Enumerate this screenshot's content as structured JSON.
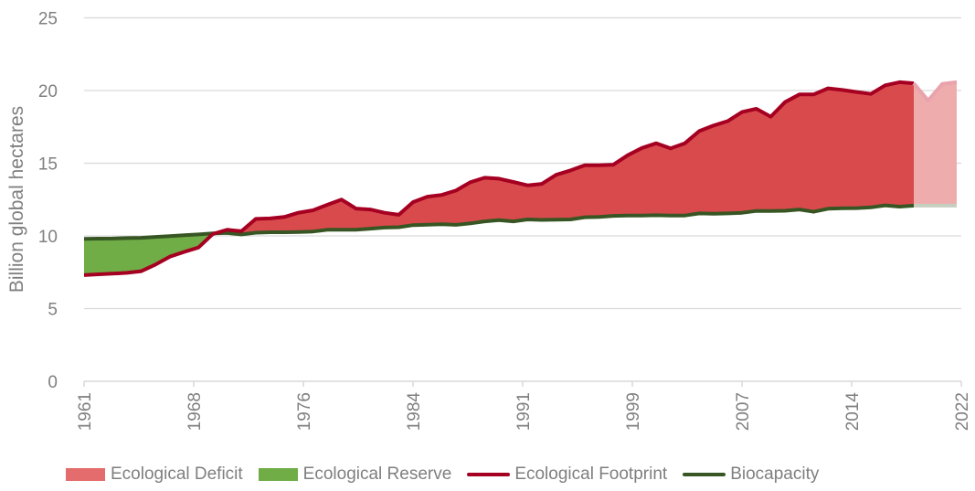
{
  "chart_data": {
    "type": "area",
    "title": "",
    "xlabel": "",
    "ylabel": "Billion global hectares",
    "ylim": [
      0,
      25
    ],
    "yticks": [
      0,
      5,
      10,
      15,
      20,
      25
    ],
    "xlim": [
      1961,
      2022
    ],
    "xtick_labels": [
      "1961",
      "1968",
      "1976",
      "1984",
      "1991",
      "1999",
      "2007",
      "2014",
      "2022"
    ],
    "grid": true,
    "legend_position": "bottom",
    "projection_start_year": 2019,
    "x": [
      1961,
      1962,
      1963,
      1964,
      1965,
      1966,
      1967,
      1968,
      1969,
      1970,
      1971,
      1972,
      1973,
      1974,
      1975,
      1976,
      1977,
      1978,
      1979,
      1980,
      1981,
      1982,
      1983,
      1984,
      1985,
      1986,
      1987,
      1988,
      1989,
      1990,
      1991,
      1992,
      1993,
      1994,
      1995,
      1996,
      1997,
      1998,
      1999,
      2000,
      2001,
      2002,
      2003,
      2004,
      2005,
      2006,
      2007,
      2008,
      2009,
      2010,
      2011,
      2012,
      2013,
      2014,
      2015,
      2016,
      2017,
      2018,
      2019,
      2020,
      2021,
      2022
    ],
    "series": [
      {
        "name": "Ecological Footprint",
        "kind": "line",
        "color": "#a50021",
        "values": [
          7.3,
          7.36,
          7.4,
          7.46,
          7.57,
          8.03,
          8.57,
          8.9,
          9.2,
          10.13,
          10.42,
          10.32,
          11.17,
          11.2,
          11.3,
          11.6,
          11.76,
          12.14,
          12.5,
          11.88,
          11.82,
          11.59,
          11.45,
          12.33,
          12.7,
          12.82,
          13.12,
          13.69,
          14.0,
          13.94,
          13.71,
          13.48,
          13.58,
          14.2,
          14.5,
          14.86,
          14.86,
          14.9,
          15.55,
          16.05,
          16.37,
          16.02,
          16.37,
          17.21,
          17.59,
          17.9,
          18.53,
          18.74,
          18.2,
          19.2,
          19.73,
          19.73,
          20.15,
          20.04,
          19.9,
          19.77,
          20.36,
          20.57,
          20.5,
          19.31,
          20.46,
          20.57
        ]
      },
      {
        "name": "Biocapacity",
        "kind": "line",
        "color": "#375623",
        "values": [
          9.79,
          9.81,
          9.82,
          9.85,
          9.87,
          9.93,
          9.99,
          10.05,
          10.1,
          10.17,
          10.2,
          10.1,
          10.22,
          10.25,
          10.25,
          10.27,
          10.3,
          10.42,
          10.42,
          10.42,
          10.5,
          10.57,
          10.6,
          10.74,
          10.77,
          10.8,
          10.76,
          10.86,
          11.0,
          11.09,
          11.0,
          11.13,
          11.1,
          11.12,
          11.13,
          11.28,
          11.3,
          11.38,
          11.4,
          11.4,
          11.42,
          11.4,
          11.4,
          11.55,
          11.52,
          11.55,
          11.59,
          11.72,
          11.72,
          11.73,
          11.82,
          11.66,
          11.87,
          11.9,
          11.91,
          11.96,
          12.1,
          12.01,
          12.08,
          12.08,
          12.08,
          12.08
        ]
      },
      {
        "name": "Ecological Deficit",
        "kind": "fill-between",
        "color": "#e46c6c",
        "fill_color": "#d94a4c",
        "projection_color": "#efacac"
      },
      {
        "name": "Ecological Reserve",
        "kind": "fill-between",
        "color": "#70ad47"
      }
    ]
  },
  "legend": {
    "items": [
      {
        "label": "Ecological Deficit",
        "type": "box",
        "color": "#e46c6c"
      },
      {
        "label": "Ecological Reserve",
        "type": "box",
        "color": "#70ad47"
      },
      {
        "label": "Ecological Footprint",
        "type": "line",
        "color": "#a50021"
      },
      {
        "label": "Biocapacity",
        "type": "line",
        "color": "#375623"
      }
    ]
  }
}
